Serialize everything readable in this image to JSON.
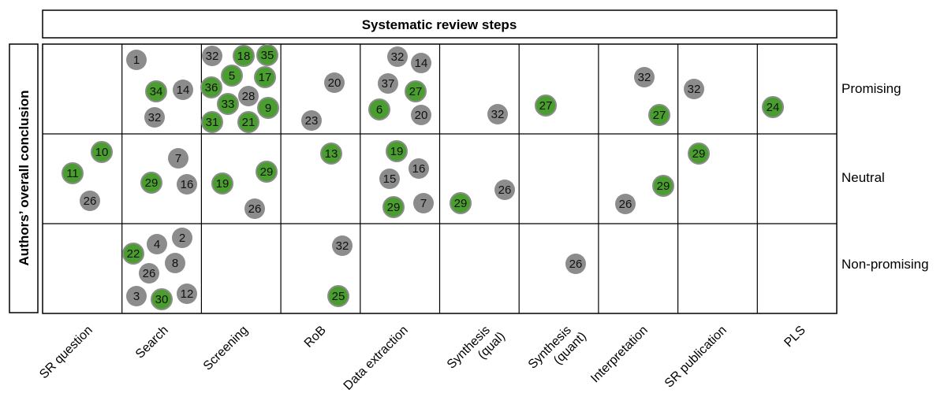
{
  "header": {
    "title": "Systematic review steps"
  },
  "side": {
    "title": "Authors’ overall conclusion"
  },
  "colors": {
    "green": "#4a9e2f",
    "gray": "#8c8c8c",
    "border": "#000000"
  },
  "chart_data": {
    "type": "matrix-bubble",
    "columns": [
      {
        "label": "SR question"
      },
      {
        "label": "Search"
      },
      {
        "label": "Screening"
      },
      {
        "label": "RoB"
      },
      {
        "label": "Data extraction"
      },
      {
        "label": "Synthesis",
        "label2": "(qual)"
      },
      {
        "label": "Synthesis",
        "label2": "(quant)"
      },
      {
        "label": "Interpretation"
      },
      {
        "label": "SR publication"
      },
      {
        "label": "PLS"
      }
    ],
    "rows": [
      "Promising",
      "Neutral",
      "Non-promising"
    ],
    "cells": [
      {
        "row": 0,
        "col": 1,
        "items": [
          {
            "n": "1",
            "c": "gray"
          },
          {
            "n": "34",
            "c": "green"
          },
          {
            "n": "14",
            "c": "gray"
          },
          {
            "n": "32",
            "c": "gray"
          }
        ]
      },
      {
        "row": 0,
        "col": 2,
        "items": [
          {
            "n": "32",
            "c": "gray"
          },
          {
            "n": "18",
            "c": "green"
          },
          {
            "n": "35",
            "c": "green"
          },
          {
            "n": "36",
            "c": "green"
          },
          {
            "n": "5",
            "c": "green"
          },
          {
            "n": "17",
            "c": "green"
          },
          {
            "n": "28",
            "c": "gray"
          },
          {
            "n": "33",
            "c": "green"
          },
          {
            "n": "9",
            "c": "green"
          },
          {
            "n": "31",
            "c": "green"
          },
          {
            "n": "21",
            "c": "green"
          }
        ]
      },
      {
        "row": 0,
        "col": 3,
        "items": [
          {
            "n": "20",
            "c": "gray"
          },
          {
            "n": "23",
            "c": "gray"
          }
        ]
      },
      {
        "row": 0,
        "col": 4,
        "items": [
          {
            "n": "32",
            "c": "gray"
          },
          {
            "n": "14",
            "c": "gray"
          },
          {
            "n": "37",
            "c": "gray"
          },
          {
            "n": "27",
            "c": "green"
          },
          {
            "n": "6",
            "c": "green"
          },
          {
            "n": "20",
            "c": "gray"
          }
        ]
      },
      {
        "row": 0,
        "col": 5,
        "items": [
          {
            "n": "32",
            "c": "gray"
          }
        ]
      },
      {
        "row": 0,
        "col": 6,
        "items": [
          {
            "n": "27",
            "c": "green"
          }
        ]
      },
      {
        "row": 0,
        "col": 7,
        "items": [
          {
            "n": "32",
            "c": "gray"
          },
          {
            "n": "27",
            "c": "green"
          }
        ]
      },
      {
        "row": 0,
        "col": 8,
        "items": [
          {
            "n": "32",
            "c": "gray"
          }
        ]
      },
      {
        "row": 0,
        "col": 9,
        "items": [
          {
            "n": "24",
            "c": "green"
          }
        ]
      },
      {
        "row": 1,
        "col": 0,
        "items": [
          {
            "n": "10",
            "c": "green"
          },
          {
            "n": "11",
            "c": "green"
          },
          {
            "n": "26",
            "c": "gray"
          }
        ]
      },
      {
        "row": 1,
        "col": 1,
        "items": [
          {
            "n": "7",
            "c": "gray"
          },
          {
            "n": "29",
            "c": "green"
          },
          {
            "n": "16",
            "c": "gray"
          }
        ]
      },
      {
        "row": 1,
        "col": 2,
        "items": [
          {
            "n": "29",
            "c": "green"
          },
          {
            "n": "19",
            "c": "green"
          },
          {
            "n": "26",
            "c": "gray"
          }
        ]
      },
      {
        "row": 1,
        "col": 3,
        "items": [
          {
            "n": "13",
            "c": "green"
          }
        ]
      },
      {
        "row": 1,
        "col": 4,
        "items": [
          {
            "n": "19",
            "c": "green"
          },
          {
            "n": "16",
            "c": "gray"
          },
          {
            "n": "15",
            "c": "gray"
          },
          {
            "n": "29",
            "c": "green"
          },
          {
            "n": "7",
            "c": "gray"
          }
        ]
      },
      {
        "row": 1,
        "col": 5,
        "items": [
          {
            "n": "29",
            "c": "green"
          },
          {
            "n": "26",
            "c": "gray"
          }
        ]
      },
      {
        "row": 1,
        "col": 7,
        "items": [
          {
            "n": "29",
            "c": "green"
          },
          {
            "n": "26",
            "c": "gray"
          }
        ]
      },
      {
        "row": 1,
        "col": 8,
        "items": [
          {
            "n": "29",
            "c": "green"
          }
        ]
      },
      {
        "row": 2,
        "col": 1,
        "items": [
          {
            "n": "2",
            "c": "gray"
          },
          {
            "n": "4",
            "c": "gray"
          },
          {
            "n": "22",
            "c": "green"
          },
          {
            "n": "8",
            "c": "gray"
          },
          {
            "n": "26",
            "c": "gray"
          },
          {
            "n": "3",
            "c": "gray"
          },
          {
            "n": "30",
            "c": "green"
          },
          {
            "n": "12",
            "c": "gray"
          }
        ]
      },
      {
        "row": 2,
        "col": 3,
        "items": [
          {
            "n": "32",
            "c": "gray"
          },
          {
            "n": "25",
            "c": "green"
          }
        ]
      },
      {
        "row": 2,
        "col": 6,
        "items": [
          {
            "n": "26",
            "c": "gray"
          }
        ]
      }
    ]
  }
}
